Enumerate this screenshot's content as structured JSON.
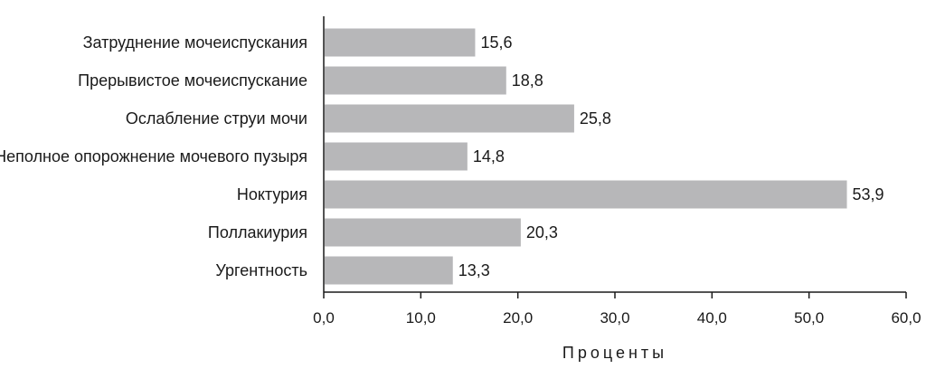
{
  "chart_data": {
    "type": "bar",
    "orientation": "horizontal",
    "categories": [
      "Затруднение мочеиспускания",
      "Прерывистое мочеиспускание",
      "Ослабление струи мочи",
      "Неполное опорожнение мочевого пузыря",
      "Ноктурия",
      "Поллакиурия",
      "Ургентность"
    ],
    "values": [
      15.6,
      18.8,
      25.8,
      14.8,
      53.9,
      20.3,
      13.3
    ],
    "value_labels": [
      "15,6",
      "18,8",
      "25,8",
      "14,8",
      "53,9",
      "20,3",
      "13,3"
    ],
    "xlabel": "Проценты",
    "xlim": [
      0,
      60
    ],
    "xticks": [
      0,
      10,
      20,
      30,
      40,
      50,
      60
    ],
    "xtick_labels": [
      "0,0",
      "10,0",
      "20,0",
      "30,0",
      "40,0",
      "50,0",
      "60,0"
    ],
    "grid": false,
    "bar_color": "#b7b7b9",
    "axis_color": "#1a1a1a"
  }
}
